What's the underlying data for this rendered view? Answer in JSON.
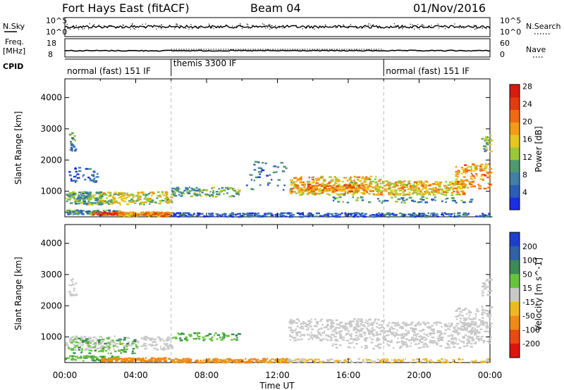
{
  "header": {
    "title": "Fort Hays East (fitACF)",
    "beam": "Beam 04",
    "date": "01/Nov/2016"
  },
  "aux_labels": {
    "nsky": "N.Sky",
    "nsearch": "N.Search",
    "freq": "Freq.",
    "freq_unit": "[MHz]",
    "nave": "Nave",
    "cpid": "CPID",
    "noise_ticks": [
      "10^5",
      "10^0"
    ],
    "freq_ticks": [
      "18",
      "8"
    ],
    "nave_ticks": [
      "60",
      "0"
    ]
  },
  "cpid_segments": [
    {
      "label": "normal (fast) 151 IF",
      "start_hour": 0,
      "end_hour": 6
    },
    {
      "label": "themis 3300 IF",
      "start_hour": 6,
      "end_hour": 18
    },
    {
      "label": "normal (fast) 151 IF",
      "start_hour": 18,
      "end_hour": 24
    }
  ],
  "x_axis": {
    "label": "Time UT",
    "ticks": [
      "00:00",
      "04:00",
      "08:00",
      "12:00",
      "16:00",
      "20:00",
      "00:00"
    ],
    "range_hours": [
      0,
      24
    ]
  },
  "y_axis": {
    "label": "Slant Range [km]",
    "ticks": [
      1000,
      2000,
      3000,
      4000
    ],
    "range_km": [
      180,
      4600
    ]
  },
  "power_scale": {
    "label": "Power [dB]",
    "ticks": [
      "4",
      "8",
      "12",
      "16",
      "20",
      "24",
      "28"
    ],
    "colors": [
      "#1a2ee6",
      "#2a5fb5",
      "#3f7fa8",
      "#4d9a6e",
      "#9cc736",
      "#e7c71f",
      "#f39a17",
      "#ef6a12",
      "#e43a0e",
      "#d81b0d"
    ]
  },
  "velocity_scale": {
    "label": "Velocity [m s^-1]",
    "ticks": [
      "200",
      "100",
      "50",
      "15",
      "-15",
      "-50",
      "-100",
      "-200"
    ],
    "colors": [
      "#1d3fcf",
      "#2f62a6",
      "#3a8b56",
      "#66c43a",
      "#c9c9c9",
      "#f0b820",
      "#f08a15",
      "#ea4a10",
      "#e0120c"
    ]
  },
  "chart_data": [
    {
      "type": "heatmap",
      "name": "power",
      "colorbar": "Power [dB]",
      "blobs": [
        {
          "t0": 0.0,
          "t1": 3.0,
          "r0": 280,
          "r1": 420,
          "value": 10,
          "n": 110
        },
        {
          "t0": 1.5,
          "t1": 5.8,
          "r0": 260,
          "r1": 340,
          "value": 26,
          "n": 160
        },
        {
          "t0": 3.0,
          "t1": 6.0,
          "r0": 220,
          "r1": 360,
          "value": 20,
          "n": 100
        },
        {
          "t0": 0.0,
          "t1": 2.0,
          "r0": 600,
          "r1": 1000,
          "value": 12,
          "n": 160
        },
        {
          "t0": 2.0,
          "t1": 6.0,
          "r0": 600,
          "r1": 1000,
          "value": 16,
          "n": 170
        },
        {
          "t0": 6.0,
          "t1": 9.8,
          "r0": 850,
          "r1": 1150,
          "value": 12,
          "n": 110
        },
        {
          "t0": 0.2,
          "t1": 1.8,
          "r0": 1300,
          "r1": 1800,
          "value": 6,
          "n": 40
        },
        {
          "t0": 0.2,
          "t1": 0.6,
          "r0": 2300,
          "r1": 2900,
          "value": 10,
          "n": 22
        },
        {
          "t0": 6.0,
          "t1": 18.0,
          "r0": 200,
          "r1": 330,
          "value": 6,
          "n": 240
        },
        {
          "t0": 18.0,
          "t1": 24.0,
          "r0": 200,
          "r1": 330,
          "value": 8,
          "n": 110
        },
        {
          "t0": 10.0,
          "t1": 12.5,
          "r0": 1000,
          "r1": 2000,
          "value": 8,
          "n": 40
        },
        {
          "t0": 12.6,
          "t1": 18.0,
          "r0": 900,
          "r1": 1500,
          "value": 18,
          "n": 320
        },
        {
          "t0": 13.0,
          "t1": 17.0,
          "r0": 1000,
          "r1": 1250,
          "value": 22,
          "n": 120
        },
        {
          "t0": 18.0,
          "t1": 22.5,
          "r0": 900,
          "r1": 1350,
          "value": 18,
          "n": 260
        },
        {
          "t0": 22.0,
          "t1": 24.0,
          "r0": 1100,
          "r1": 1900,
          "value": 20,
          "n": 120
        },
        {
          "t0": 15.0,
          "t1": 23.0,
          "r0": 650,
          "r1": 850,
          "value": 10,
          "n": 70
        },
        {
          "t0": 23.5,
          "t1": 24.0,
          "r0": 2300,
          "r1": 2900,
          "value": 14,
          "n": 26
        }
      ]
    },
    {
      "type": "heatmap",
      "name": "velocity",
      "colorbar": "Velocity [m s^-1]",
      "blobs": [
        {
          "t0": 0.0,
          "t1": 6.0,
          "r0": 600,
          "r1": 1050,
          "value": 0,
          "n": 200
        },
        {
          "t0": 0.0,
          "t1": 4.0,
          "r0": 500,
          "r1": 1000,
          "value": 30,
          "n": 90
        },
        {
          "t0": 0.0,
          "t1": 3.0,
          "r0": 260,
          "r1": 420,
          "value": 30,
          "n": 80
        },
        {
          "t0": 2.0,
          "t1": 6.0,
          "r0": 240,
          "r1": 360,
          "value": -60,
          "n": 120
        },
        {
          "t0": 6.0,
          "t1": 12.5,
          "r0": 200,
          "r1": 330,
          "value": -40,
          "n": 200
        },
        {
          "t0": 6.0,
          "t1": 9.8,
          "r0": 900,
          "r1": 1150,
          "value": 30,
          "n": 70
        },
        {
          "t0": 12.6,
          "t1": 18.0,
          "r0": 900,
          "r1": 1600,
          "value": 0,
          "n": 320
        },
        {
          "t0": 18.0,
          "t1": 24.0,
          "r0": 800,
          "r1": 1500,
          "value": 0,
          "n": 300
        },
        {
          "t0": 22.0,
          "t1": 24.0,
          "r0": 1200,
          "r1": 2000,
          "value": 0,
          "n": 100
        },
        {
          "t0": 15.0,
          "t1": 23.0,
          "r0": 650,
          "r1": 850,
          "value": 0,
          "n": 60
        },
        {
          "t0": 12.0,
          "t1": 24.0,
          "r0": 200,
          "r1": 330,
          "value": -20,
          "n": 140
        },
        {
          "t0": 0.2,
          "t1": 0.6,
          "r0": 2300,
          "r1": 2900,
          "value": 0,
          "n": 18
        },
        {
          "t0": 23.5,
          "t1": 24.0,
          "r0": 2300,
          "r1": 2900,
          "value": 0,
          "n": 20
        }
      ]
    }
  ]
}
